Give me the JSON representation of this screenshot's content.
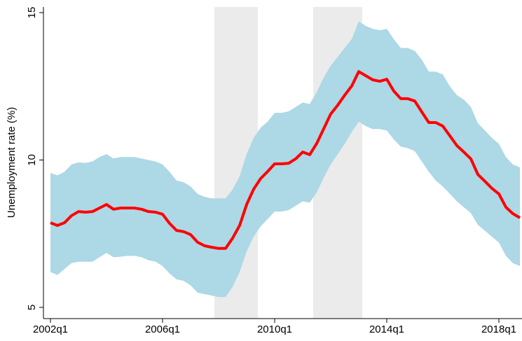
{
  "chart_data": {
    "type": "line",
    "ylabel": "Unemployment rate (%)",
    "x": [
      2002,
      2002.25,
      2002.5,
      2002.75,
      2003,
      2003.25,
      2003.5,
      2003.75,
      2004,
      2004.25,
      2004.5,
      2004.75,
      2005,
      2005.25,
      2005.5,
      2005.75,
      2006,
      2006.25,
      2006.5,
      2006.75,
      2007,
      2007.25,
      2007.5,
      2007.75,
      2008,
      2008.25,
      2008.5,
      2008.75,
      2009,
      2009.25,
      2009.5,
      2009.75,
      2010,
      2010.25,
      2010.5,
      2010.75,
      2011,
      2011.25,
      2011.5,
      2011.75,
      2012,
      2012.25,
      2012.5,
      2012.75,
      2013,
      2013.25,
      2013.5,
      2013.75,
      2014,
      2014.25,
      2014.5,
      2014.75,
      2015,
      2015.25,
      2015.5,
      2015.75,
      2016,
      2016.25,
      2016.5,
      2016.75,
      2017,
      2017.25,
      2017.5,
      2017.75,
      2018,
      2018.25,
      2018.5,
      2018.75
    ],
    "series": [
      {
        "color": "#ff0000",
        "values": [
          7.87,
          7.78,
          7.87,
          8.11,
          8.25,
          8.23,
          8.25,
          8.37,
          8.49,
          8.33,
          8.37,
          8.37,
          8.37,
          8.33,
          8.25,
          8.23,
          8.16,
          7.85,
          7.61,
          7.57,
          7.47,
          7.21,
          7.09,
          7.04,
          7.0,
          7.0,
          7.35,
          7.78,
          8.49,
          9.01,
          9.37,
          9.61,
          9.87,
          9.87,
          9.89,
          10.04,
          10.27,
          10.18,
          10.56,
          11.06,
          11.56,
          11.86,
          12.2,
          12.51,
          13.0,
          12.86,
          12.72,
          12.67,
          12.74,
          12.34,
          12.08,
          12.08,
          12.0,
          11.63,
          11.27,
          11.27,
          11.15,
          10.82,
          10.49,
          10.27,
          10.04,
          9.51,
          9.28,
          9.04,
          8.85,
          8.4,
          8.18,
          8.04
        ]
      }
    ],
    "band": {
      "color": "#add8e6",
      "lower": [
        6.2,
        6.1,
        6.3,
        6.5,
        6.55,
        6.55,
        6.55,
        6.7,
        6.85,
        6.7,
        6.72,
        6.75,
        6.75,
        6.7,
        6.6,
        6.55,
        6.4,
        6.15,
        5.95,
        5.9,
        5.75,
        5.5,
        5.45,
        5.4,
        5.35,
        5.35,
        5.7,
        6.2,
        6.9,
        7.4,
        7.75,
        8.0,
        8.25,
        8.25,
        8.3,
        8.45,
        8.6,
        8.55,
        8.9,
        9.4,
        9.85,
        10.2,
        10.55,
        10.95,
        11.3,
        11.15,
        11.05,
        11.05,
        11.0,
        10.7,
        10.45,
        10.4,
        10.3,
        9.95,
        9.6,
        9.3,
        9.1,
        8.85,
        8.6,
        8.4,
        8.2,
        7.8,
        7.6,
        7.4,
        7.2,
        6.75,
        6.5,
        6.4
      ],
      "upper": [
        9.56,
        9.48,
        9.6,
        9.85,
        9.92,
        9.9,
        9.95,
        10.1,
        10.2,
        10.05,
        10.1,
        10.1,
        10.1,
        10.05,
        10.0,
        9.95,
        9.85,
        9.6,
        9.3,
        9.25,
        9.1,
        8.85,
        8.75,
        8.7,
        8.7,
        8.7,
        9.0,
        9.45,
        10.2,
        10.75,
        11.1,
        11.3,
        11.6,
        11.6,
        11.65,
        11.8,
        11.95,
        11.9,
        12.3,
        12.8,
        13.2,
        13.5,
        13.8,
        14.1,
        14.7,
        14.55,
        14.45,
        14.4,
        14.45,
        14.1,
        13.8,
        13.8,
        13.7,
        13.4,
        13.0,
        13.0,
        12.9,
        12.5,
        12.2,
        12.05,
        11.8,
        11.25,
        11.0,
        10.75,
        10.55,
        10.1,
        9.85,
        9.75
      ]
    },
    "shaded_regions": {
      "color": "#ebebeb",
      "spans": [
        [
          2007.85,
          2009.4
        ],
        [
          2011.375,
          2013.125
        ]
      ]
    },
    "xlim": [
      2001.75,
      2018.825
    ],
    "xticks": [
      {
        "value": 2002,
        "label": "2002q1"
      },
      {
        "value": 2006,
        "label": "2006q1"
      },
      {
        "value": 2010,
        "label": "2010q1"
      },
      {
        "value": 2014,
        "label": "2014q1"
      },
      {
        "value": 2018,
        "label": "2018q1"
      }
    ],
    "ylim": [
      4.62,
      15.19
    ],
    "yticks": [
      5,
      10,
      15
    ],
    "grid": false
  }
}
